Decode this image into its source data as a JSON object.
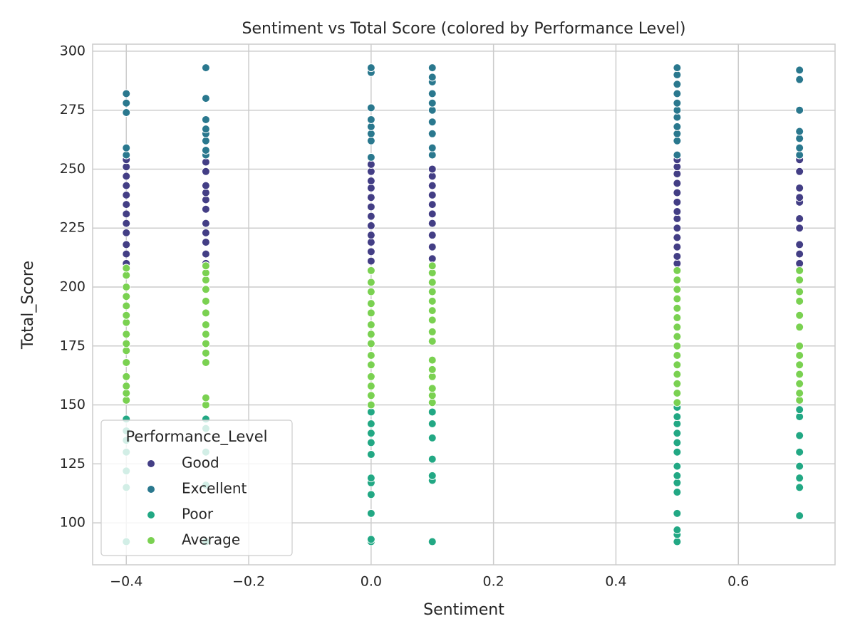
{
  "chart_data": {
    "type": "scatter",
    "title": "Sentiment vs Total Score (colored by Performance Level)",
    "x_label": "Sentiment",
    "y_label": "Total_Score",
    "legend_title": "Performance_Level",
    "legend_position": "lower left",
    "grid": true,
    "xlim": [
      -0.455,
      0.758
    ],
    "ylim": [
      82.2,
      303
    ],
    "xticks": [
      {
        "value": -0.4,
        "label": "−0.4"
      },
      {
        "value": -0.2,
        "label": "−0.2"
      },
      {
        "value": 0.0,
        "label": "0.0"
      },
      {
        "value": 0.2,
        "label": "0.2"
      },
      {
        "value": 0.4,
        "label": "0.4"
      },
      {
        "value": 0.6,
        "label": "0.6"
      }
    ],
    "yticks": [
      100,
      125,
      150,
      175,
      200,
      225,
      250,
      275,
      300
    ],
    "series": [
      {
        "name": "Good",
        "color": "#433e85",
        "x": [
          -0.4,
          -0.4,
          -0.4,
          -0.4,
          -0.4,
          -0.4,
          -0.4,
          -0.4,
          -0.4,
          -0.4,
          -0.4,
          -0.4,
          -0.27,
          -0.27,
          -0.27,
          -0.27,
          -0.27,
          -0.27,
          -0.27,
          -0.27,
          -0.27,
          -0.27,
          -0.27,
          0,
          0,
          0,
          0,
          0,
          0,
          0,
          0,
          0,
          0,
          0,
          0,
          0.1,
          0.1,
          0.1,
          0.1,
          0.1,
          0.1,
          0.1,
          0.1,
          0.1,
          0.1,
          0.5,
          0.5,
          0.5,
          0.5,
          0.5,
          0.5,
          0.5,
          0.5,
          0.5,
          0.5,
          0.5,
          0.5,
          0.5,
          0.7,
          0.7,
          0.7,
          0.7,
          0.7,
          0.7,
          0.7,
          0.7,
          0.7,
          0.7
        ],
        "values": [
          210,
          214,
          218,
          223,
          227,
          231,
          235,
          239,
          243,
          247,
          251,
          254,
          210,
          214,
          219,
          223,
          227,
          233,
          237,
          240,
          243,
          249,
          253,
          211,
          215,
          219,
          222,
          226,
          230,
          234,
          238,
          242,
          245,
          249,
          252,
          212,
          217,
          222,
          227,
          231,
          235,
          239,
          243,
          247,
          250,
          210,
          213,
          217,
          221,
          225,
          229,
          232,
          236,
          240,
          244,
          248,
          251,
          254,
          210,
          214,
          218,
          225,
          229,
          236,
          238,
          242,
          249,
          254
        ]
      },
      {
        "name": "Excellent",
        "color": "#2a788e",
        "x": [
          -0.4,
          -0.4,
          -0.4,
          -0.4,
          -0.4,
          -0.27,
          -0.27,
          -0.27,
          -0.27,
          -0.27,
          -0.27,
          -0.27,
          -0.27,
          0,
          0,
          0,
          0,
          0,
          0,
          0,
          0,
          0.1,
          0.1,
          0.1,
          0.1,
          0.1,
          0.1,
          0.1,
          0.1,
          0.1,
          0.1,
          0.5,
          0.5,
          0.5,
          0.5,
          0.5,
          0.5,
          0.5,
          0.5,
          0.5,
          0.5,
          0.5,
          0.7,
          0.7,
          0.7,
          0.7,
          0.7,
          0.7,
          0.7
        ],
        "values": [
          256,
          259,
          274,
          278,
          282,
          256,
          258,
          262,
          265,
          267,
          271,
          280,
          293,
          255,
          262,
          265,
          268,
          271,
          276,
          291,
          293,
          256,
          259,
          265,
          270,
          275,
          278,
          282,
          287,
          289,
          293,
          256,
          262,
          265,
          268,
          272,
          275,
          278,
          282,
          286,
          290,
          293,
          256,
          259,
          263,
          266,
          275,
          288,
          292
        ]
      },
      {
        "name": "Poor",
        "color": "#22a884",
        "x": [
          -0.4,
          -0.4,
          -0.4,
          -0.4,
          -0.4,
          -0.4,
          -0.4,
          -0.27,
          -0.27,
          -0.27,
          -0.27,
          -0.27,
          0,
          0,
          0,
          0,
          0,
          0,
          0,
          0,
          0,
          0,
          0,
          0.1,
          0.1,
          0.1,
          0.1,
          0.1,
          0.1,
          0.1,
          0.5,
          0.5,
          0.5,
          0.5,
          0.5,
          0.5,
          0.5,
          0.5,
          0.5,
          0.5,
          0.5,
          0.5,
          0.5,
          0.5,
          0.7,
          0.7,
          0.7,
          0.7,
          0.7,
          0.7,
          0.7,
          0.7
        ],
        "values": [
          92,
          115,
          122,
          130,
          135,
          139,
          144,
          92,
          116,
          130,
          140,
          144,
          92,
          93,
          104,
          112,
          117,
          119,
          129,
          134,
          138,
          142,
          147,
          92,
          118,
          120,
          127,
          136,
          142,
          147,
          92,
          95,
          97,
          104,
          113,
          117,
          120,
          124,
          130,
          134,
          138,
          142,
          145,
          149,
          103,
          115,
          119,
          124,
          130,
          137,
          145,
          148
        ]
      },
      {
        "name": "Average",
        "color": "#7ad151",
        "x": [
          -0.4,
          -0.4,
          -0.4,
          -0.4,
          -0.4,
          -0.4,
          -0.4,
          -0.4,
          -0.4,
          -0.4,
          -0.4,
          -0.4,
          -0.4,
          -0.4,
          -0.4,
          -0.27,
          -0.27,
          -0.27,
          -0.27,
          -0.27,
          -0.27,
          -0.27,
          -0.27,
          -0.27,
          -0.27,
          -0.27,
          -0.27,
          -0.27,
          0,
          0,
          0,
          0,
          0,
          0,
          0,
          0,
          0,
          0,
          0,
          0,
          0,
          0,
          0.1,
          0.1,
          0.1,
          0.1,
          0.1,
          0.1,
          0.1,
          0.1,
          0.1,
          0.1,
          0.1,
          0.1,
          0.1,
          0.1,
          0.1,
          0.5,
          0.5,
          0.5,
          0.5,
          0.5,
          0.5,
          0.5,
          0.5,
          0.5,
          0.5,
          0.5,
          0.5,
          0.5,
          0.5,
          0.5,
          0.7,
          0.7,
          0.7,
          0.7,
          0.7,
          0.7,
          0.7,
          0.7,
          0.7,
          0.7,
          0.7,
          0.7,
          0.7
        ],
        "values": [
          152,
          155,
          158,
          162,
          168,
          173,
          176,
          180,
          185,
          188,
          192,
          196,
          200,
          205,
          208,
          150,
          153,
          168,
          172,
          176,
          180,
          184,
          189,
          194,
          199,
          203,
          206,
          209,
          150,
          154,
          158,
          162,
          167,
          171,
          176,
          180,
          184,
          189,
          193,
          198,
          202,
          207,
          151,
          154,
          157,
          162,
          165,
          169,
          177,
          181,
          186,
          190,
          194,
          198,
          202,
          206,
          209,
          151,
          155,
          159,
          163,
          167,
          171,
          175,
          179,
          183,
          187,
          191,
          195,
          199,
          203,
          207,
          152,
          155,
          159,
          163,
          167,
          171,
          175,
          183,
          188,
          194,
          198,
          203,
          207
        ]
      }
    ]
  }
}
